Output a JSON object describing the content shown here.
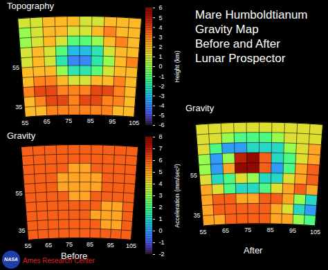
{
  "page": {
    "title": [
      "Mare Humboldtianum",
      "Gravity Map",
      "Before and After",
      "Lunar Prospector"
    ],
    "logo": "NASA",
    "credit": "Ames Research Center"
  },
  "chart_data": [
    {
      "type": "heatmap",
      "title": "Topography",
      "xlim": [
        55,
        105
      ],
      "ylim": [
        30,
        80
      ],
      "xticks": [
        55,
        65,
        75,
        85,
        95,
        105
      ],
      "yticks": [
        35,
        55
      ],
      "grid": true,
      "x": [
        57.5,
        62.5,
        67.5,
        72.5,
        77.5,
        82.5,
        87.5,
        92.5,
        97.5,
        102.5
      ],
      "y": [
        77.5,
        72.5,
        67.5,
        62.5,
        57.5,
        52.5,
        47.5,
        42.5,
        37.5,
        32.5
      ],
      "values": [
        [
          1,
          1,
          2,
          2,
          2,
          1,
          1,
          2,
          2,
          2
        ],
        [
          0,
          1,
          2,
          2,
          1,
          1,
          2,
          3,
          2,
          2
        ],
        [
          0,
          1,
          2,
          1,
          -1,
          -1,
          0,
          2,
          3,
          2
        ],
        [
          1,
          2,
          1,
          -1,
          -3,
          -3,
          -2,
          1,
          2,
          2
        ],
        [
          1,
          2,
          1,
          -2,
          -4,
          -4,
          -2,
          0,
          2,
          3
        ],
        [
          2,
          2,
          2,
          0,
          -2,
          -2,
          -1,
          1,
          2,
          2
        ],
        [
          2,
          3,
          3,
          2,
          1,
          1,
          2,
          2,
          3,
          2
        ],
        [
          3,
          4,
          4,
          3,
          3,
          3,
          4,
          4,
          3,
          2
        ],
        [
          2,
          3,
          4,
          4,
          3,
          4,
          4,
          3,
          3,
          2
        ],
        [
          2,
          2,
          3,
          3,
          3,
          3,
          3,
          3,
          2,
          2
        ]
      ],
      "colorbar_range": [
        -6,
        6
      ],
      "colorbar": {
        "label": "Height (km)",
        "ticks": [
          -6,
          -5,
          -4,
          -3,
          -2,
          -1,
          0,
          1,
          2,
          3,
          4,
          5,
          6
        ]
      }
    },
    {
      "type": "heatmap",
      "title": "Gravity",
      "caption": "Before",
      "xlim": [
        55,
        105
      ],
      "ylim": [
        30,
        80
      ],
      "xticks": [
        55,
        65,
        75,
        85,
        95,
        105
      ],
      "yticks": [
        35,
        55
      ],
      "grid": true,
      "x": [
        57.5,
        62.5,
        67.5,
        72.5,
        77.5,
        82.5,
        87.5,
        92.5,
        97.5,
        102.5
      ],
      "y": [
        77.5,
        72.5,
        67.5,
        62.5,
        57.5,
        52.5,
        47.5,
        42.5,
        37.5,
        32.5
      ],
      "values": [
        [
          6,
          6,
          6,
          6,
          6,
          6,
          6,
          6,
          6,
          6
        ],
        [
          6,
          6,
          6,
          6,
          6,
          6,
          6,
          6,
          6,
          6
        ],
        [
          6,
          6,
          6,
          6,
          5,
          5,
          6,
          6,
          6,
          6
        ],
        [
          6,
          6,
          6,
          5,
          5,
          5,
          5,
          6,
          6,
          6
        ],
        [
          6,
          6,
          6,
          5,
          5,
          5,
          5,
          6,
          6,
          6
        ],
        [
          6,
          6,
          6,
          6,
          5,
          5,
          6,
          6,
          6,
          6
        ],
        [
          6,
          6,
          6,
          6,
          6,
          6,
          6,
          5,
          5,
          6
        ],
        [
          6,
          6,
          6,
          6,
          6,
          6,
          5,
          5,
          5,
          6
        ],
        [
          6,
          6,
          6,
          6,
          6,
          6,
          6,
          5,
          5,
          6
        ],
        [
          6,
          6,
          6,
          6,
          6,
          6,
          6,
          6,
          6,
          6
        ]
      ],
      "colorbar_range": [
        -2,
        8
      ],
      "colorbar": {
        "label": "Acceleration (mm/sec²)",
        "ticks": [
          -2,
          -1,
          0,
          1,
          2,
          3,
          4,
          5,
          6,
          7,
          8
        ]
      }
    },
    {
      "type": "heatmap",
      "title": "Gravity",
      "caption": "After",
      "xlim": [
        55,
        105
      ],
      "ylim": [
        30,
        80
      ],
      "xticks": [
        55,
        65,
        75,
        85,
        95,
        105
      ],
      "yticks": [
        35,
        55
      ],
      "grid": true,
      "x": [
        57.5,
        62.5,
        67.5,
        72.5,
        77.5,
        82.5,
        87.5,
        92.5,
        97.5,
        102.5
      ],
      "y": [
        77.5,
        72.5,
        67.5,
        62.5,
        57.5,
        52.5,
        47.5,
        42.5,
        37.5,
        32.5
      ],
      "values": [
        [
          4,
          4,
          4,
          4,
          4,
          4,
          4,
          4,
          4,
          4
        ],
        [
          4,
          4,
          3,
          2,
          2,
          2,
          3,
          4,
          4,
          4
        ],
        [
          4,
          2,
          0,
          0,
          1,
          1,
          1,
          3,
          4,
          5
        ],
        [
          3,
          0,
          3,
          7,
          8,
          6,
          1,
          2,
          4,
          5
        ],
        [
          3,
          0,
          5,
          8,
          8,
          6,
          0,
          2,
          5,
          6
        ],
        [
          4,
          1,
          2,
          4,
          3,
          1,
          1,
          4,
          5,
          6
        ],
        [
          5,
          4,
          2,
          1,
          1,
          2,
          4,
          5,
          6,
          5
        ],
        [
          5,
          6,
          6,
          5,
          5,
          6,
          6,
          5,
          3,
          1
        ],
        [
          5,
          6,
          6,
          6,
          6,
          6,
          5,
          4,
          1,
          0
        ],
        [
          5,
          5,
          6,
          6,
          6,
          6,
          5,
          5,
          3,
          2
        ]
      ],
      "colorbar_range": [
        -2,
        8
      ]
    }
  ]
}
